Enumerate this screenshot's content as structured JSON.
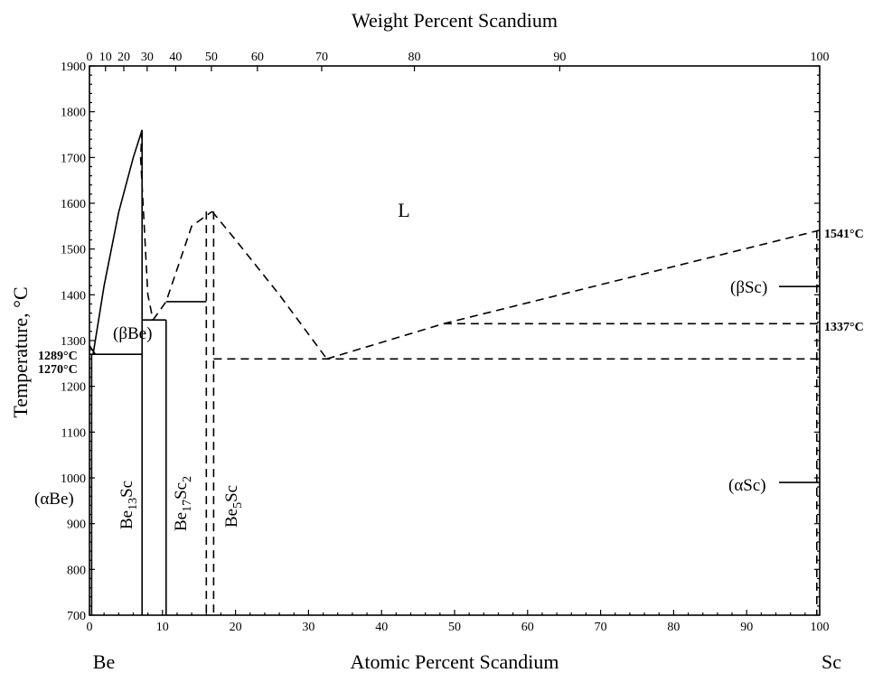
{
  "title_top": "Weight Percent Scandium",
  "title_bottom": "Atomic Percent Scandium",
  "y_axis_title": "Temperature, °C",
  "left_element": "Be",
  "right_element": "Sc",
  "y_axis": {
    "min": 700,
    "max": 1900,
    "ticks": [
      700,
      800,
      900,
      1000,
      1100,
      1200,
      1300,
      1400,
      1500,
      1600,
      1700,
      1800,
      1900
    ]
  },
  "x_axis_bottom": {
    "min": 0,
    "max": 100,
    "ticks": [
      0,
      10,
      20,
      30,
      40,
      50,
      60,
      70,
      80,
      90,
      100
    ]
  },
  "x_axis_top_weight": {
    "ticks": [
      {
        "label": "0",
        "at_pct": 0
      },
      {
        "label": "10",
        "at_pct": 2.2
      },
      {
        "label": "20",
        "at_pct": 4.7
      },
      {
        "label": "30",
        "at_pct": 7.9
      },
      {
        "label": "40",
        "at_pct": 11.8
      },
      {
        "label": "50",
        "at_pct": 16.7
      },
      {
        "label": "60",
        "at_pct": 23.0
      },
      {
        "label": "70",
        "at_pct": 31.8
      },
      {
        "label": "80",
        "at_pct": 44.5
      },
      {
        "label": "90",
        "at_pct": 64.4
      },
      {
        "label": "100",
        "at_pct": 100
      }
    ]
  },
  "labels": {
    "liquid": "L",
    "beta_be": "(βBe)",
    "alpha_be": "(αBe)",
    "beta_sc": "(βSc)",
    "alpha_sc": "(αSc)",
    "be13sc": {
      "base": "Be",
      "sub1": "13",
      "mid": "Sc"
    },
    "be17sc2": {
      "base": "Be",
      "sub1": "17",
      "mid": "Sc",
      "sub2": "2"
    },
    "be5sc": {
      "base": "Be",
      "sub1": "5",
      "mid": "Sc"
    },
    "t1289": "1289°C",
    "t1270": "1270°C",
    "t1541": "1541°C",
    "t1337": "1337°C"
  },
  "chart_data": {
    "type": "phase-diagram",
    "xlim": [
      0,
      100
    ],
    "ylim": [
      700,
      1900
    ],
    "solid_lines": [
      {
        "name": "liquidus-be-side",
        "points": [
          [
            0.5,
            1270
          ],
          [
            2,
            1420
          ],
          [
            4,
            1580
          ],
          [
            6,
            1700
          ],
          [
            7.2,
            1760
          ]
        ]
      },
      {
        "name": "be13sc-peak-right",
        "points": [
          [
            7.2,
            1760
          ],
          [
            7.2,
            700
          ]
        ]
      },
      {
        "name": "eutectic-1270",
        "points": [
          [
            0,
            1270
          ],
          [
            7.2,
            1270
          ]
        ]
      },
      {
        "name": "be-side-peritectic-left",
        "points": [
          [
            0,
            1289
          ],
          [
            0.8,
            1270
          ]
        ]
      },
      {
        "name": "be17sc2-left",
        "points": [
          [
            10.5,
            1345
          ],
          [
            10.5,
            700
          ]
        ]
      },
      {
        "name": "be17sc2-step",
        "points": [
          [
            7.2,
            1345
          ],
          [
            10.5,
            1345
          ]
        ]
      },
      {
        "name": "be17sc2-top",
        "points": [
          [
            10.5,
            1385
          ],
          [
            16,
            1385
          ]
        ]
      },
      {
        "name": "be-edge",
        "points": [
          [
            0.3,
            1270
          ],
          [
            0.3,
            700
          ]
        ]
      }
    ],
    "dashed_lines": [
      {
        "name": "be13sc-liquidus-left",
        "points": [
          [
            7.2,
            1760
          ],
          [
            7,
            1700
          ],
          [
            8,
            1400
          ],
          [
            8.7,
            1345
          ]
        ]
      },
      {
        "name": "liquidus-dip",
        "points": [
          [
            8.7,
            1345
          ],
          [
            10.5,
            1385
          ],
          [
            14,
            1550
          ],
          [
            16.8,
            1582
          ]
        ]
      },
      {
        "name": "liquidus-to-eutectic",
        "points": [
          [
            16.8,
            1582
          ],
          [
            20,
            1520
          ],
          [
            26,
            1400
          ],
          [
            32.5,
            1260
          ]
        ]
      },
      {
        "name": "liquidus-sc-side",
        "points": [
          [
            32.5,
            1260
          ],
          [
            48.5,
            1337
          ],
          [
            100,
            1541
          ]
        ]
      },
      {
        "name": "be5sc-left",
        "points": [
          [
            16,
            1582
          ],
          [
            16,
            700
          ]
        ]
      },
      {
        "name": "be5sc-right",
        "points": [
          [
            17,
            1582
          ],
          [
            17,
            700
          ]
        ]
      },
      {
        "name": "eutectic-sc-side",
        "points": [
          [
            17,
            1260
          ],
          [
            100,
            1260
          ]
        ]
      },
      {
        "name": "beta-sc-transition",
        "points": [
          [
            48.5,
            1337
          ],
          [
            100,
            1337
          ]
        ]
      },
      {
        "name": "sc-edge",
        "points": [
          [
            99.6,
            1541
          ],
          [
            99.6,
            700
          ]
        ]
      }
    ]
  }
}
